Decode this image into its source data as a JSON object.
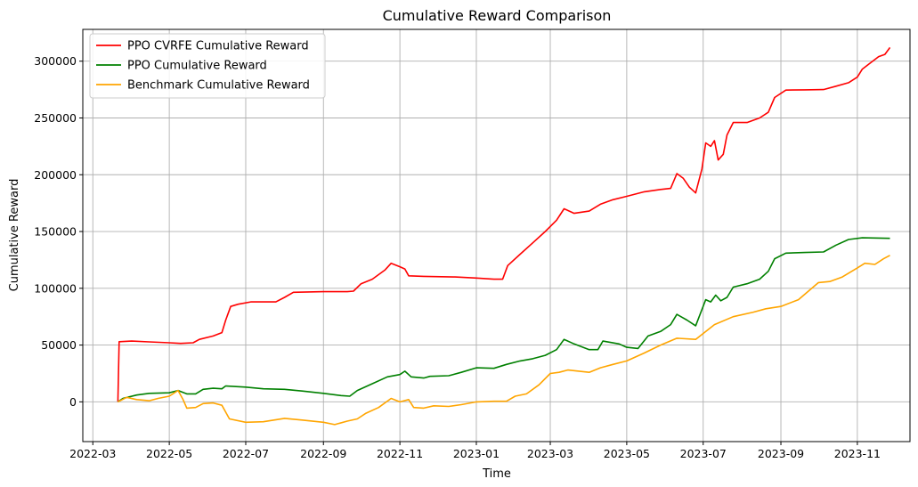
{
  "chart_data": {
    "type": "line",
    "title": "Cumulative Reward Comparison",
    "xlabel": "Time",
    "ylabel": "Cumulative Reward",
    "ylim": [
      -35000,
      328000
    ],
    "xlim": [
      "2022-02-21",
      "2023-12-13"
    ],
    "x_ticks": [
      "2022-03",
      "2022-05",
      "2022-07",
      "2022-09",
      "2022-11",
      "2023-01",
      "2023-03",
      "2023-05",
      "2023-07",
      "2023-09",
      "2023-11"
    ],
    "y_ticks": [
      0,
      50000,
      100000,
      150000,
      200000,
      250000,
      300000
    ],
    "grid": true,
    "legend_position": "top-left",
    "series": [
      {
        "name": "PPO CVRFE Cumulative Reward",
        "color": "#ff0000",
        "points": [
          [
            "2022-03-21",
            0
          ],
          [
            "2022-03-22",
            53000
          ],
          [
            "2022-04-01",
            53500
          ],
          [
            "2022-04-15",
            52800
          ],
          [
            "2022-05-01",
            52000
          ],
          [
            "2022-05-10",
            51500
          ],
          [
            "2022-05-20",
            52000
          ],
          [
            "2022-05-25",
            55000
          ],
          [
            "2022-06-05",
            58000
          ],
          [
            "2022-06-12",
            61000
          ],
          [
            "2022-06-15",
            72000
          ],
          [
            "2022-06-19",
            84000
          ],
          [
            "2022-06-25",
            86000
          ],
          [
            "2022-07-05",
            88000
          ],
          [
            "2022-07-25",
            88000
          ],
          [
            "2022-08-01",
            92000
          ],
          [
            "2022-08-08",
            96500
          ],
          [
            "2022-09-01",
            97000
          ],
          [
            "2022-09-20",
            97000
          ],
          [
            "2022-09-25",
            97500
          ],
          [
            "2022-10-01",
            104000
          ],
          [
            "2022-10-10",
            108000
          ],
          [
            "2022-10-20",
            116000
          ],
          [
            "2022-10-25",
            122000
          ],
          [
            "2022-11-01",
            119000
          ],
          [
            "2022-11-05",
            117000
          ],
          [
            "2022-11-08",
            111000
          ],
          [
            "2022-11-20",
            110500
          ],
          [
            "2022-12-15",
            110000
          ],
          [
            "2023-01-01",
            109000
          ],
          [
            "2023-01-15",
            108000
          ],
          [
            "2023-01-22",
            108000
          ],
          [
            "2023-01-26",
            120000
          ],
          [
            "2023-02-05",
            130000
          ],
          [
            "2023-02-15",
            140000
          ],
          [
            "2023-02-25",
            150000
          ],
          [
            "2023-03-06",
            160000
          ],
          [
            "2023-03-12",
            170000
          ],
          [
            "2023-03-20",
            166000
          ],
          [
            "2023-04-01",
            168000
          ],
          [
            "2023-04-10",
            174000
          ],
          [
            "2023-04-20",
            178000
          ],
          [
            "2023-05-01",
            181000
          ],
          [
            "2023-05-15",
            185000
          ],
          [
            "2023-05-28",
            187000
          ],
          [
            "2023-06-05",
            188000
          ],
          [
            "2023-06-10",
            201000
          ],
          [
            "2023-06-15",
            197000
          ],
          [
            "2023-06-20",
            189000
          ],
          [
            "2023-06-25",
            184000
          ],
          [
            "2023-06-30",
            205000
          ],
          [
            "2023-07-03",
            228000
          ],
          [
            "2023-07-07",
            225000
          ],
          [
            "2023-07-10",
            230000
          ],
          [
            "2023-07-13",
            213000
          ],
          [
            "2023-07-17",
            218000
          ],
          [
            "2023-07-20",
            235000
          ],
          [
            "2023-07-25",
            246000
          ],
          [
            "2023-08-05",
            246000
          ],
          [
            "2023-08-15",
            250000
          ],
          [
            "2023-08-22",
            255000
          ],
          [
            "2023-08-27",
            268000
          ],
          [
            "2023-09-05",
            274500
          ],
          [
            "2023-09-20",
            274800
          ],
          [
            "2023-10-05",
            275000
          ],
          [
            "2023-10-15",
            278000
          ],
          [
            "2023-10-25",
            281000
          ],
          [
            "2023-11-01",
            286000
          ],
          [
            "2023-11-05",
            293000
          ],
          [
            "2023-11-12",
            299000
          ],
          [
            "2023-11-18",
            304000
          ],
          [
            "2023-11-23",
            306000
          ],
          [
            "2023-11-27",
            312000
          ]
        ]
      },
      {
        "name": "PPO Cumulative Reward",
        "color": "#008000",
        "points": [
          [
            "2022-03-21",
            0
          ],
          [
            "2022-03-25",
            3000
          ],
          [
            "2022-04-05",
            6000
          ],
          [
            "2022-04-15",
            7500
          ],
          [
            "2022-05-01",
            8000
          ],
          [
            "2022-05-08",
            10000
          ],
          [
            "2022-05-15",
            7000
          ],
          [
            "2022-05-22",
            7000
          ],
          [
            "2022-05-28",
            11000
          ],
          [
            "2022-06-05",
            12000
          ],
          [
            "2022-06-12",
            11500
          ],
          [
            "2022-06-15",
            14000
          ],
          [
            "2022-07-01",
            13000
          ],
          [
            "2022-07-15",
            11500
          ],
          [
            "2022-08-01",
            11000
          ],
          [
            "2022-08-15",
            9500
          ],
          [
            "2022-09-01",
            7500
          ],
          [
            "2022-09-15",
            5500
          ],
          [
            "2022-09-22",
            5000
          ],
          [
            "2022-09-28",
            10000
          ],
          [
            "2022-10-10",
            16000
          ],
          [
            "2022-10-22",
            22000
          ],
          [
            "2022-11-01",
            24000
          ],
          [
            "2022-11-05",
            27000
          ],
          [
            "2022-11-10",
            22000
          ],
          [
            "2022-11-20",
            21000
          ],
          [
            "2022-11-25",
            22500
          ],
          [
            "2022-12-10",
            23000
          ],
          [
            "2022-12-20",
            26000
          ],
          [
            "2023-01-01",
            30000
          ],
          [
            "2023-01-15",
            29500
          ],
          [
            "2023-01-25",
            33000
          ],
          [
            "2023-02-05",
            36000
          ],
          [
            "2023-02-15",
            38000
          ],
          [
            "2023-02-25",
            41000
          ],
          [
            "2023-03-06",
            46000
          ],
          [
            "2023-03-12",
            55000
          ],
          [
            "2023-03-20",
            51000
          ],
          [
            "2023-04-01",
            46000
          ],
          [
            "2023-04-08",
            46000
          ],
          [
            "2023-04-12",
            53500
          ],
          [
            "2023-04-25",
            51000
          ],
          [
            "2023-05-01",
            48000
          ],
          [
            "2023-05-10",
            47000
          ],
          [
            "2023-05-18",
            58000
          ],
          [
            "2023-05-28",
            62000
          ],
          [
            "2023-06-05",
            68000
          ],
          [
            "2023-06-10",
            77000
          ],
          [
            "2023-06-18",
            72000
          ],
          [
            "2023-06-25",
            67000
          ],
          [
            "2023-07-03",
            90000
          ],
          [
            "2023-07-07",
            88000
          ],
          [
            "2023-07-11",
            94000
          ],
          [
            "2023-07-15",
            89000
          ],
          [
            "2023-07-20",
            92000
          ],
          [
            "2023-07-25",
            101000
          ],
          [
            "2023-08-05",
            104000
          ],
          [
            "2023-08-15",
            108000
          ],
          [
            "2023-08-22",
            115000
          ],
          [
            "2023-08-27",
            126000
          ],
          [
            "2023-09-05",
            131000
          ],
          [
            "2023-09-20",
            131500
          ],
          [
            "2023-10-05",
            132000
          ],
          [
            "2023-10-15",
            138000
          ],
          [
            "2023-10-25",
            143000
          ],
          [
            "2023-11-05",
            144500
          ],
          [
            "2023-11-27",
            144000
          ]
        ]
      },
      {
        "name": "Benchmark Cumulative Reward",
        "color": "#ffa500",
        "points": [
          [
            "2022-03-21",
            0
          ],
          [
            "2022-03-28",
            4000
          ],
          [
            "2022-04-05",
            2000
          ],
          [
            "2022-04-15",
            1000
          ],
          [
            "2022-04-22",
            3000
          ],
          [
            "2022-05-01",
            5000
          ],
          [
            "2022-05-08",
            10000
          ],
          [
            "2022-05-12",
            2000
          ],
          [
            "2022-05-15",
            -5500
          ],
          [
            "2022-05-22",
            -5000
          ],
          [
            "2022-05-28",
            -1500
          ],
          [
            "2022-06-05",
            -1000
          ],
          [
            "2022-06-12",
            -3000
          ],
          [
            "2022-06-18",
            -15000
          ],
          [
            "2022-07-01",
            -18000
          ],
          [
            "2022-07-15",
            -17500
          ],
          [
            "2022-08-01",
            -14500
          ],
          [
            "2022-08-15",
            -16000
          ],
          [
            "2022-09-01",
            -18000
          ],
          [
            "2022-09-10",
            -20000
          ],
          [
            "2022-09-20",
            -17000
          ],
          [
            "2022-09-28",
            -15000
          ],
          [
            "2022-10-05",
            -10000
          ],
          [
            "2022-10-15",
            -5000
          ],
          [
            "2022-10-25",
            3000
          ],
          [
            "2022-11-01",
            0
          ],
          [
            "2022-11-08",
            2000
          ],
          [
            "2022-11-12",
            -5000
          ],
          [
            "2022-11-20",
            -5500
          ],
          [
            "2022-11-28",
            -3500
          ],
          [
            "2022-12-10",
            -4000
          ],
          [
            "2022-12-20",
            -2500
          ],
          [
            "2023-01-01",
            0
          ],
          [
            "2023-01-15",
            500
          ],
          [
            "2023-01-25",
            500
          ],
          [
            "2023-02-01",
            5000
          ],
          [
            "2023-02-10",
            7000
          ],
          [
            "2023-02-20",
            15000
          ],
          [
            "2023-03-01",
            25000
          ],
          [
            "2023-03-08",
            26000
          ],
          [
            "2023-03-15",
            28000
          ],
          [
            "2023-04-01",
            26000
          ],
          [
            "2023-04-10",
            30000
          ],
          [
            "2023-04-20",
            33000
          ],
          [
            "2023-05-01",
            36000
          ],
          [
            "2023-05-15",
            43000
          ],
          [
            "2023-05-28",
            50000
          ],
          [
            "2023-06-10",
            56000
          ],
          [
            "2023-06-25",
            55000
          ],
          [
            "2023-07-10",
            68000
          ],
          [
            "2023-07-25",
            75000
          ],
          [
            "2023-08-10",
            79000
          ],
          [
            "2023-08-20",
            82000
          ],
          [
            "2023-09-01",
            84000
          ],
          [
            "2023-09-15",
            90000
          ],
          [
            "2023-10-01",
            105000
          ],
          [
            "2023-10-10",
            106000
          ],
          [
            "2023-10-20",
            110000
          ],
          [
            "2023-11-01",
            118000
          ],
          [
            "2023-11-07",
            122000
          ],
          [
            "2023-11-15",
            121000
          ],
          [
            "2023-11-22",
            126000
          ],
          [
            "2023-11-27",
            129000
          ]
        ]
      }
    ]
  }
}
